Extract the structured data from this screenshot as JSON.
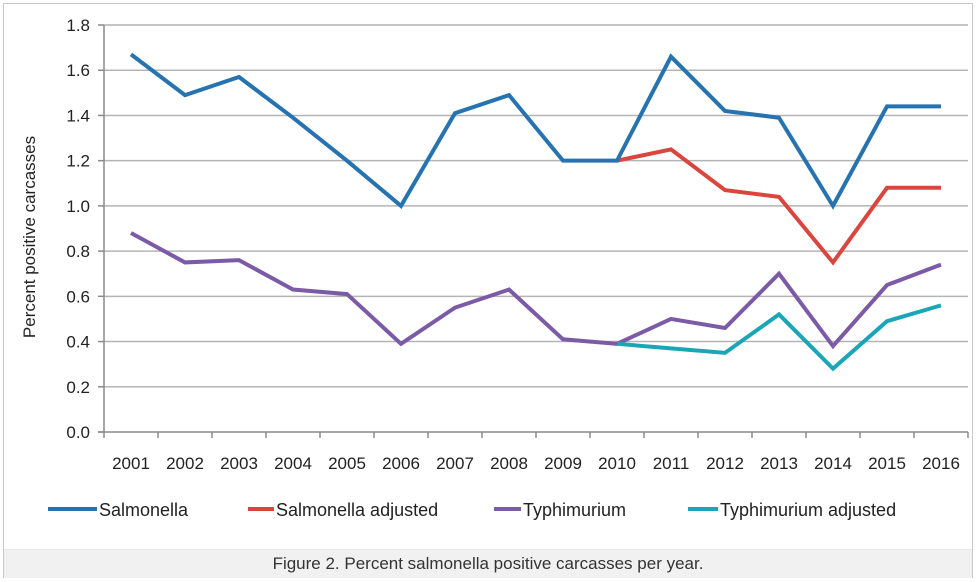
{
  "chart_data": {
    "type": "line",
    "title": "",
    "xlabel": "",
    "ylabel": "Percent positive carcasses",
    "ylim": [
      0,
      1.8
    ],
    "yticks": [
      "0.0",
      "0.2",
      "0.4",
      "0.6",
      "0.8",
      "1.0",
      "1.2",
      "1.4",
      "1.6",
      "1.8"
    ],
    "ytick_values": [
      0,
      0.2,
      0.4,
      0.6,
      0.8,
      1.0,
      1.2,
      1.4,
      1.6,
      1.8
    ],
    "grid": true,
    "legend_position": "bottom",
    "categories": [
      "2001",
      "2002",
      "2003",
      "2004",
      "2005",
      "2006",
      "2007",
      "2008",
      "2009",
      "2010",
      "2011",
      "2012",
      "2013",
      "2014",
      "2015",
      "2016"
    ],
    "series": [
      {
        "name": "Salmonella",
        "color": "#2673b0",
        "values": [
          1.67,
          1.49,
          1.57,
          1.39,
          1.2,
          1.0,
          1.41,
          1.49,
          1.2,
          1.2,
          1.66,
          1.42,
          1.39,
          1.0,
          1.44,
          1.44
        ]
      },
      {
        "name": "Salmonella adjusted",
        "color": "#d9463e",
        "values": [
          null,
          null,
          null,
          null,
          null,
          null,
          null,
          null,
          null,
          1.2,
          1.25,
          1.07,
          1.04,
          0.75,
          1.08,
          1.08
        ]
      },
      {
        "name": "Typhimurium",
        "color": "#7b5aa6",
        "values": [
          0.88,
          0.75,
          0.76,
          0.63,
          0.61,
          0.39,
          0.55,
          0.63,
          0.41,
          0.39,
          0.5,
          0.46,
          0.7,
          0.38,
          0.65,
          0.74
        ]
      },
      {
        "name": "Typhimurium adjusted",
        "color": "#1aa6b7",
        "values": [
          null,
          null,
          null,
          null,
          null,
          null,
          null,
          null,
          null,
          0.39,
          0.37,
          0.35,
          0.52,
          0.28,
          0.49,
          0.56
        ]
      }
    ]
  },
  "caption": "Figure 2. Percent salmonella positive carcasses per year."
}
